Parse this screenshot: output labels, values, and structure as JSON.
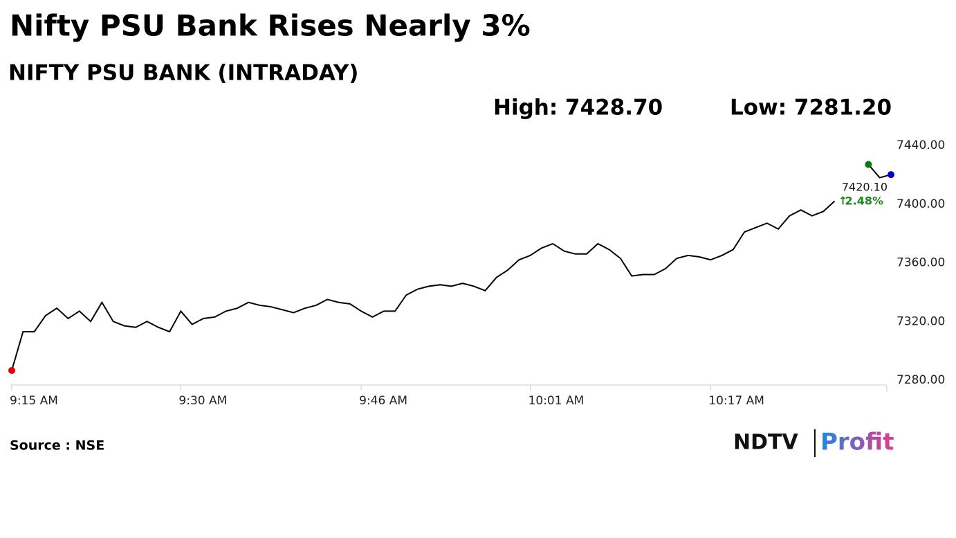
{
  "chart_data": {
    "type": "line",
    "title": "Nifty PSU Bank Rises Nearly 3%",
    "subtitle": "NIFTY PSU BANK (INTRADAY)",
    "high_label": "High: 7428.70",
    "low_label": "Low: 7281.20",
    "source": "Source : NSE",
    "logo": [
      "NDTV",
      "Profit"
    ],
    "x": [
      "9:15 AM",
      "9:16 AM",
      "9:17 AM",
      "9:18 AM",
      "9:19 AM",
      "9:20 AM",
      "9:21 AM",
      "9:22 AM",
      "9:23 AM",
      "9:24 AM",
      "9:25 AM",
      "9:26 AM",
      "9:27 AM",
      "9:28 AM",
      "9:29 AM",
      "9:30 AM",
      "9:31 AM",
      "9:32 AM",
      "9:33 AM",
      "9:34 AM",
      "9:35 AM",
      "9:36 AM",
      "9:37 AM",
      "9:38 AM",
      "9:39 AM",
      "9:40 AM",
      "9:41 AM",
      "9:42 AM",
      "9:43 AM",
      "9:44 AM",
      "9:45 AM",
      "9:46 AM",
      "9:47 AM",
      "9:48 AM",
      "9:49 AM",
      "9:50 AM",
      "9:51 AM",
      "9:52 AM",
      "9:53 AM",
      "9:54 AM",
      "9:55 AM",
      "9:56 AM",
      "9:57 AM",
      "9:58 AM",
      "9:59 AM",
      "10:00 AM",
      "10:01 AM",
      "10:02 AM",
      "10:03 AM",
      "10:04 AM",
      "10:05 AM",
      "10:06 AM",
      "10:07 AM",
      "10:08 AM",
      "10:09 AM",
      "10:10 AM",
      "10:11 AM",
      "10:12 AM",
      "10:13 AM",
      "10:14 AM",
      "10:15 AM",
      "10:16 AM",
      "10:17 AM",
      "10:18 AM",
      "10:19 AM",
      "10:20 AM",
      "10:21 AM",
      "10:22 AM",
      "10:23 AM",
      "10:24 AM",
      "10:25 AM",
      "10:26 AM",
      "10:27 AM",
      "10:28 AM",
      "10:29 AM",
      "10:30 AM",
      "10:31 AM",
      "10:32 AM",
      "10:33 AM"
    ],
    "series": [
      {
        "name": "NIFTY PSU BANK",
        "color": "#000000",
        "values": [
          7286.6,
          7313,
          7313,
          7324,
          7329,
          7322,
          7327,
          7320,
          7333,
          7320,
          7317,
          7316,
          7320,
          7316,
          7313,
          7327,
          7318,
          7322,
          7323,
          7327,
          7329,
          7333,
          7331,
          7330,
          7328,
          7326,
          7329,
          7331,
          7335,
          7333,
          7332,
          7327,
          7323,
          7327,
          7327,
          7338,
          7342,
          7344,
          7345,
          7344,
          7346,
          7344,
          7341,
          7350,
          7355,
          7362,
          7365,
          7370,
          7373,
          7368,
          7366,
          7366,
          7373,
          7369,
          7363,
          7351,
          7352,
          7352,
          7356,
          7363,
          7365,
          7364,
          7362,
          7365,
          7369,
          7381,
          7384,
          7387,
          7383,
          7392,
          7396,
          7392,
          7395,
          7402,
          null,
          null,
          7427,
          7418,
          7420.1
        ]
      }
    ],
    "last_value": {
      "value": 7420.1,
      "label": "7420.10"
    },
    "change": "2.48%",
    "xticks": [
      "9:15 AM",
      "9:30 AM",
      "9:46 AM",
      "10:01 AM",
      "10:17 AM"
    ],
    "ylim": [
      7280,
      7440
    ],
    "yticks": [
      {
        "value": 7280,
        "label": "7280.00"
      },
      {
        "value": 7320,
        "label": "7320.00"
      },
      {
        "value": 7360,
        "label": "7360.00"
      },
      {
        "value": 7400,
        "label": "7400.00"
      },
      {
        "value": 7440,
        "label": "7440.00"
      }
    ],
    "grid": false
  }
}
